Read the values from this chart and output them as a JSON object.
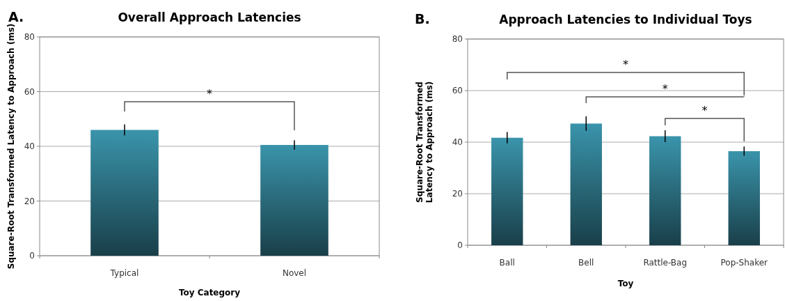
{
  "chart_data": [
    {
      "type": "bar",
      "title": "Overall Approach Latencies",
      "xlabel": "Toy Category",
      "ylabel": "Square-Root Transformed Latency to Approach (ms)",
      "categories": [
        "Typical",
        "Novel"
      ],
      "values": [
        46,
        40.5
      ],
      "errors": [
        2,
        1.7
      ],
      "color": "#3a94ab",
      "ylim": [
        0,
        80
      ],
      "yticks": [
        0,
        20,
        40,
        60,
        80
      ],
      "grid": "y",
      "annotations": [
        "A.",
        "*"
      ]
    },
    {
      "type": "bar",
      "title": "Approach Latencies to Individual Toys",
      "xlabel": "Toy",
      "ylabel": "Square-Root Transformed Latency to Approach (ms)",
      "categories": [
        "Ball",
        "Bell",
        "Rattle-Bag",
        "Pop-Shaker"
      ],
      "values": [
        41.7,
        47.2,
        42.3,
        36.5
      ],
      "errors": [
        2.2,
        2.8,
        2.3,
        1.8
      ],
      "color": "#3a94ab",
      "ylim": [
        0,
        80
      ],
      "yticks": [
        0,
        20,
        40,
        60,
        80
      ],
      "grid": "y",
      "annotations": [
        "B.",
        "*",
        "*",
        "*"
      ]
    }
  ]
}
